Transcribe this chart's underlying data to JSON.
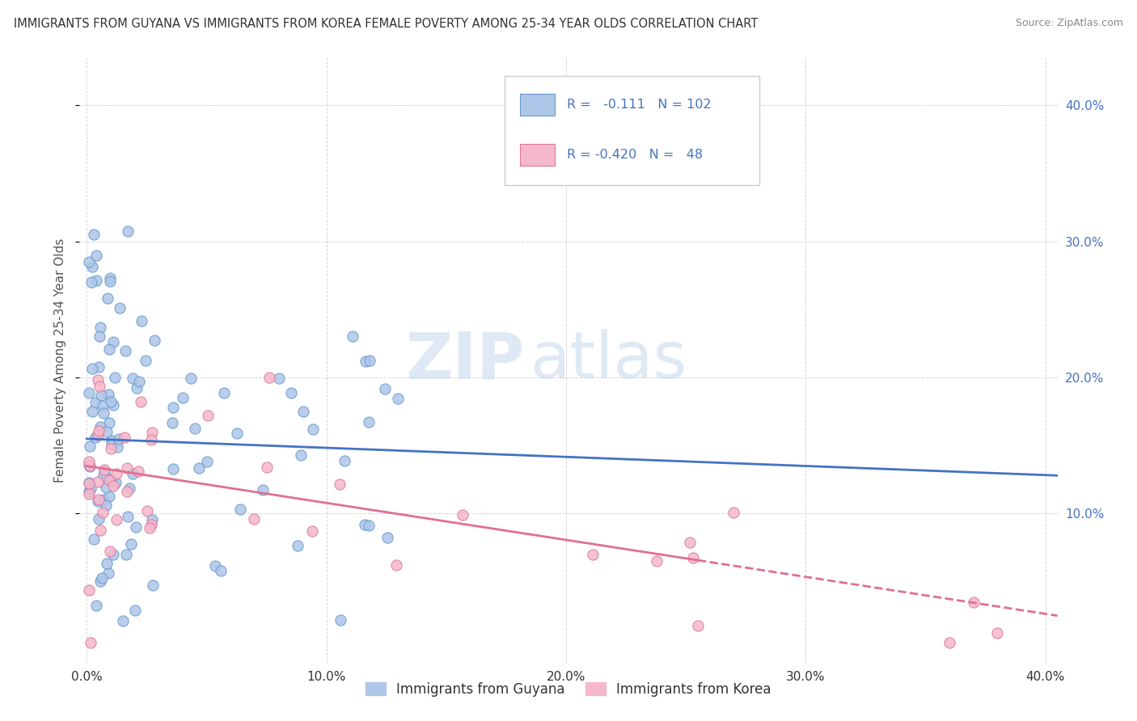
{
  "title": "IMMIGRANTS FROM GUYANA VS IMMIGRANTS FROM KOREA FEMALE POVERTY AMONG 25-34 YEAR OLDS CORRELATION CHART",
  "source": "Source: ZipAtlas.com",
  "ylabel": "Female Poverty Among 25-34 Year Olds",
  "x_ticklabels": [
    "0.0%",
    "10.0%",
    "20.0%",
    "30.0%",
    "40.0%"
  ],
  "x_ticks": [
    0.0,
    0.1,
    0.2,
    0.3,
    0.4
  ],
  "y_ticklabels_right": [
    "10.0%",
    "20.0%",
    "30.0%",
    "40.0%"
  ],
  "y_ticks_right": [
    0.1,
    0.2,
    0.3,
    0.4
  ],
  "xlim": [
    -0.003,
    0.405
  ],
  "ylim": [
    -0.01,
    0.435
  ],
  "guyana_color": "#aec6e8",
  "guyana_edge": "#6699cc",
  "korea_color": "#f5b8cb",
  "korea_edge": "#dd7799",
  "trend_guyana_color": "#4472c4",
  "trend_korea_color": "#e07090",
  "legend_label_guyana": "Immigrants from Guyana",
  "legend_label_korea": "Immigrants from Korea",
  "watermark_zip": "ZIP",
  "watermark_atlas": "atlas",
  "background_color": "#ffffff",
  "grid_color": "#cccccc",
  "guyana_trend_x0": 0.0,
  "guyana_trend_x1": 0.405,
  "guyana_trend_y0": 0.155,
  "guyana_trend_y1": 0.128,
  "korea_trend_x0": 0.0,
  "korea_trend_x1": 0.405,
  "korea_trend_y0": 0.135,
  "korea_trend_y1": 0.025,
  "korea_dash_split": 0.255
}
